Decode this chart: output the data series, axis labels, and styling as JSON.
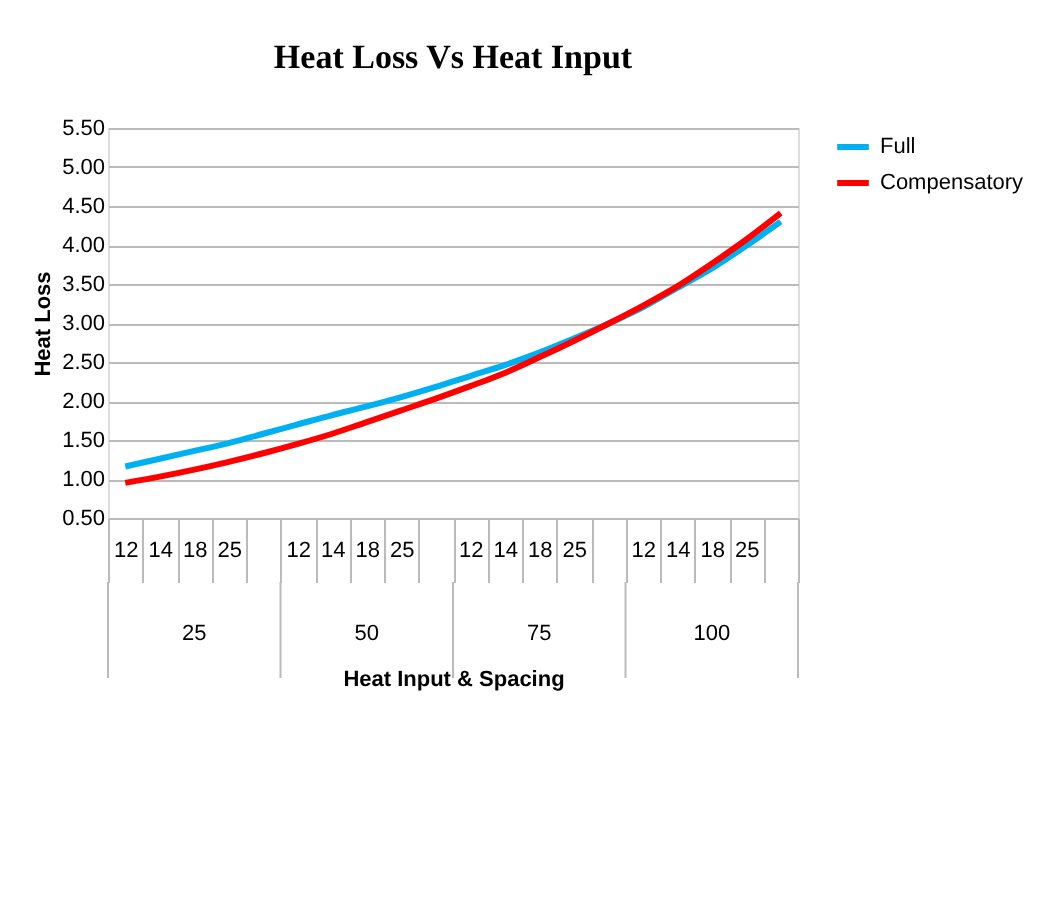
{
  "chart_data": {
    "type": "line",
    "title": "Heat Loss Vs Heat Input",
    "xlabel": "Heat Input & Spacing",
    "ylabel": "Heat Loss",
    "categories": [
      "12",
      "14",
      "18",
      "25",
      null,
      "12",
      "14",
      "18",
      "25",
      null,
      "12",
      "14",
      "18",
      "25",
      null,
      "12",
      "14",
      "18",
      "25",
      null
    ],
    "annotations": [
      "25",
      "50",
      "75",
      "100"
    ],
    "series": [
      {
        "name": "Full",
        "color": "#00b0f0",
        "values": [
          1.16,
          1.26,
          1.36,
          1.46,
          1.58,
          1.7,
          1.82,
          1.93,
          2.05,
          2.18,
          2.32,
          2.46,
          2.62,
          2.8,
          2.99,
          3.2,
          3.45,
          3.7,
          3.99,
          4.3
        ]
      },
      {
        "name": "Compensatory",
        "color": "#ff0000",
        "values": [
          0.95,
          1.03,
          1.12,
          1.22,
          1.33,
          1.45,
          1.58,
          1.73,
          1.88,
          2.03,
          2.19,
          2.36,
          2.56,
          2.77,
          2.99,
          3.22,
          3.47,
          3.76,
          4.07,
          4.41
        ]
      }
    ],
    "ylim": [
      0.5,
      5.5
    ],
    "yticks": [
      {
        "value": 0.5,
        "label": "0.50"
      },
      {
        "value": 1.0,
        "label": "1.00"
      },
      {
        "value": 1.5,
        "label": "1.50"
      },
      {
        "value": 2.0,
        "label": "2.00"
      },
      {
        "value": 2.5,
        "label": "2.50"
      },
      {
        "value": 3.0,
        "label": "3.00"
      },
      {
        "value": 3.5,
        "label": "3.50"
      },
      {
        "value": 4.0,
        "label": "4.00"
      },
      {
        "value": 4.5,
        "label": "4.50"
      },
      {
        "value": 5.0,
        "label": "5.00"
      },
      {
        "value": 5.5,
        "label": "5.50"
      }
    ],
    "grid": "y",
    "legend": "right",
    "marker": "none",
    "line_style": "solid"
  }
}
